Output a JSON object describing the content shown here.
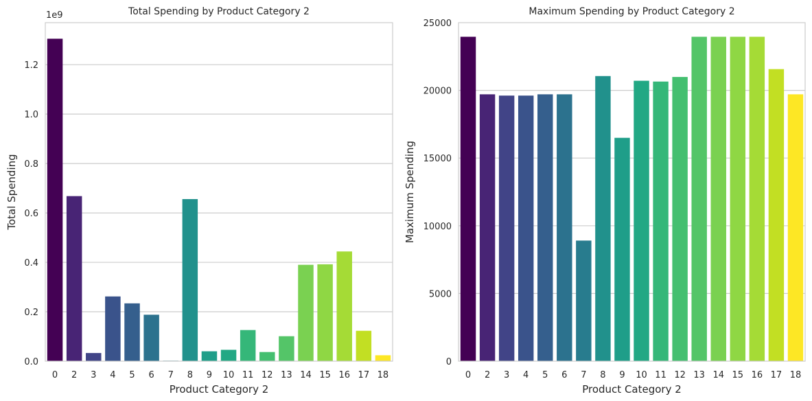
{
  "chart_data": [
    {
      "type": "bar",
      "title": "Total Spending by Product Category 2",
      "xlabel": "Product Category 2",
      "ylabel": "Total Spending",
      "offset_label": "1e9",
      "ylim": [
        0,
        1.37
      ],
      "yticks": [
        "0.0",
        "0.2",
        "0.4",
        "0.6",
        "0.8",
        "1.0",
        "1.2"
      ],
      "categories": [
        "0",
        "2",
        "3",
        "4",
        "5",
        "6",
        "7",
        "8",
        "9",
        "10",
        "11",
        "12",
        "13",
        "14",
        "15",
        "16",
        "17",
        "18"
      ],
      "values": [
        1.305,
        0.668,
        0.033,
        0.262,
        0.234,
        0.188,
        0.002,
        0.656,
        0.04,
        0.046,
        0.126,
        0.037,
        0.101,
        0.39,
        0.392,
        0.444,
        0.123,
        0.024
      ],
      "grid": "y"
    },
    {
      "type": "bar",
      "title": "Maximum Spending by Product Category 2",
      "xlabel": "Product Category 2",
      "ylabel": "Maximum Spending",
      "ylim": [
        0,
        25000
      ],
      "yticks": [
        "0",
        "5000",
        "10000",
        "15000",
        "20000",
        "25000"
      ],
      "categories": [
        "0",
        "2",
        "3",
        "4",
        "5",
        "6",
        "7",
        "8",
        "9",
        "10",
        "11",
        "12",
        "13",
        "14",
        "15",
        "16",
        "17",
        "18"
      ],
      "values": [
        23958,
        19708,
        19614,
        19614,
        19708,
        19708,
        8906,
        21056,
        16495,
        20709,
        20651,
        20990,
        23958,
        23958,
        23958,
        23958,
        21569,
        19708
      ],
      "grid": "y"
    }
  ],
  "palette": [
    "#440154",
    "#482475",
    "#414487",
    "#3a538b",
    "#355f8d",
    "#2c728e",
    "#287c8e",
    "#21918c",
    "#1f9e89",
    "#22a884",
    "#35b779",
    "#44bf70",
    "#54c568",
    "#7ad151",
    "#8fd744",
    "#a5db36",
    "#c2df23",
    "#fde725"
  ],
  "style": {
    "axis_color": "#cccccc",
    "grid_color": "#cccccc",
    "text_color": "#262626"
  }
}
